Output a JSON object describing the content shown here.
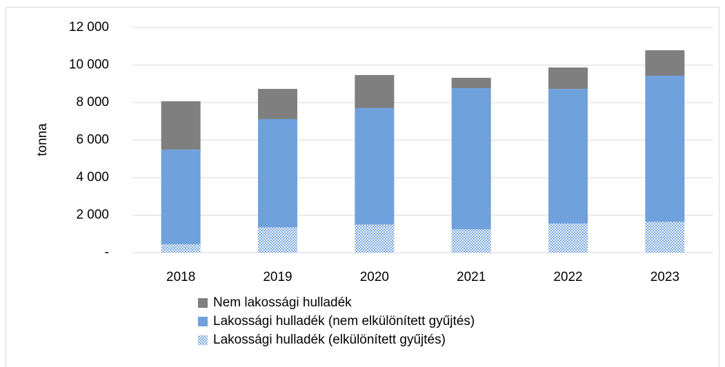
{
  "chart_data": {
    "type": "bar",
    "stacked": true,
    "y_label": "tonna",
    "categories": [
      "2018",
      "2019",
      "2020",
      "2021",
      "2022",
      "2023"
    ],
    "series": [
      {
        "name": "Lakossági hulladék (elkülönített gyűjtés)",
        "color": "#6fa1dc",
        "pattern": true,
        "values": [
          450,
          1350,
          1500,
          1250,
          1550,
          1650
        ]
      },
      {
        "name": "Lakossági hulladék (nem elkülönített gyűjtés)",
        "color": "#6fa1dc",
        "values": [
          5050,
          5770,
          6210,
          7520,
          7180,
          7780
        ]
      },
      {
        "name": "Nem lakossági hulladék",
        "color": "#7f7f7f",
        "values": [
          2570,
          1610,
          1760,
          550,
          1140,
          1360
        ]
      }
    ],
    "ylim": [
      0,
      12000
    ],
    "yticks": [
      {
        "value": 0,
        "label": "-"
      },
      {
        "value": 2000,
        "label": "2 000"
      },
      {
        "value": 4000,
        "label": "4 000"
      },
      {
        "value": 6000,
        "label": "6 000"
      },
      {
        "value": 8000,
        "label": "8 000"
      },
      {
        "value": 10000,
        "label": "10 000"
      },
      {
        "value": 12000,
        "label": "12 000"
      }
    ],
    "grid": true
  }
}
